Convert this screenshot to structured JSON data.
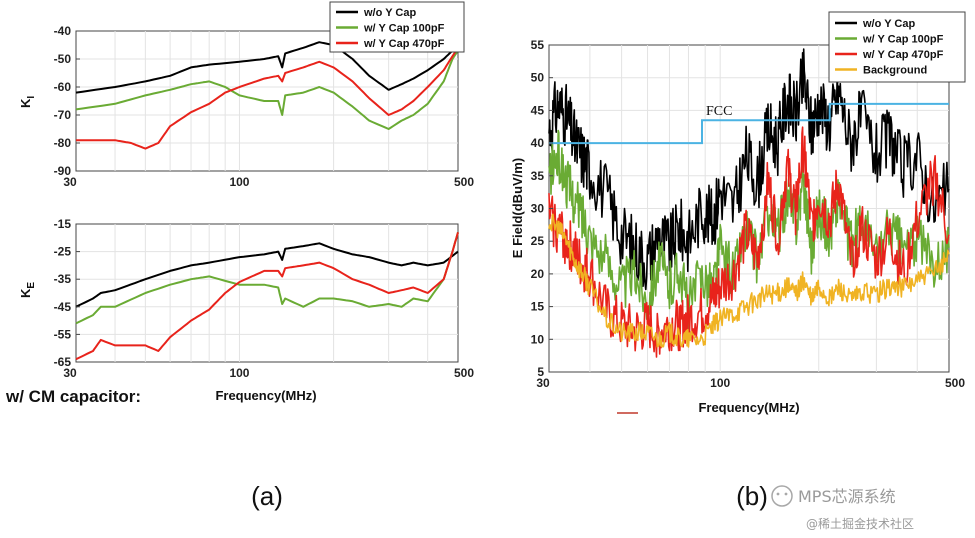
{
  "chart_data": [
    {
      "id": "kI",
      "type": "line",
      "ylabel": "K",
      "ylabel_sub": "I",
      "xlabel": "",
      "x_scale": "log",
      "xlim": [
        30,
        500
      ],
      "ylim": [
        -90,
        -40
      ],
      "x_ticks": [
        30,
        100,
        500
      ],
      "y_ticks": [
        -40,
        -50,
        -60,
        -70,
        -80,
        -90
      ],
      "legend": [
        "w/o Y Cap",
        "w/ Y Cap 100pF",
        "w/ Y Cap 470pF"
      ],
      "legend_position": "top-right",
      "series": [
        {
          "name": "w/o Y Cap",
          "color": "#000000",
          "x": [
            30,
            40,
            50,
            60,
            70,
            80,
            100,
            120,
            133,
            137,
            140,
            160,
            180,
            200,
            230,
            260,
            300,
            330,
            360,
            400,
            450,
            480,
            500
          ],
          "y": [
            -62,
            -60,
            -58,
            -56,
            -53,
            -52,
            -51,
            -50,
            -49,
            -53,
            -48,
            -46,
            -44,
            -45,
            -50,
            -56,
            -61,
            -59,
            -57,
            -54,
            -50,
            -47,
            -46
          ]
        },
        {
          "name": "w/ Y Cap 100pF",
          "color": "#6aab34",
          "x": [
            30,
            40,
            50,
            60,
            70,
            80,
            90,
            100,
            120,
            133,
            137,
            140,
            160,
            180,
            200,
            230,
            260,
            300,
            330,
            360,
            400,
            450,
            480,
            500
          ],
          "y": [
            -68,
            -66,
            -63,
            -61,
            -59,
            -58,
            -60,
            -63,
            -65,
            -65,
            -70,
            -63,
            -62,
            -60,
            -62,
            -67,
            -72,
            -75,
            -72,
            -70,
            -66,
            -58,
            -50,
            -47
          ]
        },
        {
          "name": "w/ Y Cap 470pF",
          "color": "#e8231b",
          "x": [
            30,
            40,
            45,
            50,
            55,
            60,
            70,
            80,
            90,
            100,
            120,
            133,
            137,
            140,
            160,
            180,
            200,
            230,
            260,
            300,
            330,
            360,
            400,
            450,
            480,
            500
          ],
          "y": [
            -79,
            -79,
            -80,
            -82,
            -80,
            -74,
            -69,
            -66,
            -62,
            -60,
            -57,
            -56,
            -58,
            -55,
            -53,
            -51,
            -53,
            -58,
            -64,
            -70,
            -68,
            -65,
            -60,
            -54,
            -49,
            -46
          ]
        }
      ]
    },
    {
      "id": "kE",
      "type": "line",
      "ylabel": "K",
      "ylabel_sub": "E",
      "xlabel": "Frequency(MHz)",
      "x_scale": "log",
      "xlim": [
        30,
        500
      ],
      "ylim": [
        -65,
        -15
      ],
      "x_ticks": [
        30,
        100,
        500
      ],
      "y_ticks": [
        -15,
        -25,
        -35,
        -45,
        -55,
        -65
      ],
      "series": [
        {
          "name": "w/o Y Cap",
          "color": "#000000",
          "x": [
            30,
            34,
            36,
            40,
            50,
            60,
            70,
            80,
            100,
            120,
            133,
            137,
            140,
            160,
            180,
            200,
            230,
            260,
            300,
            330,
            360,
            400,
            450,
            500
          ],
          "y": [
            -45,
            -42,
            -40,
            -39,
            -35,
            -32,
            -30,
            -29,
            -27,
            -26,
            -25,
            -28,
            -24,
            -23,
            -22,
            -24,
            -26,
            -27,
            -29,
            -30,
            -29,
            -30,
            -29,
            -25
          ]
        },
        {
          "name": "w/ Y Cap 100pF",
          "color": "#6aab34",
          "x": [
            30,
            34,
            36,
            40,
            50,
            60,
            70,
            80,
            100,
            120,
            133,
            137,
            140,
            160,
            180,
            200,
            230,
            260,
            300,
            330,
            360,
            400,
            450,
            480,
            500
          ],
          "y": [
            -51,
            -48,
            -45,
            -45,
            -40,
            -37,
            -35,
            -34,
            -37,
            -37,
            -38,
            -44,
            -42,
            -45,
            -42,
            -42,
            -43,
            -45,
            -44,
            -45,
            -42,
            -43,
            -35,
            -25,
            -18
          ]
        },
        {
          "name": "w/ Y Cap 470pF",
          "color": "#e8231b",
          "x": [
            30,
            34,
            36,
            40,
            50,
            55,
            60,
            70,
            80,
            90,
            100,
            120,
            133,
            137,
            140,
            160,
            180,
            200,
            230,
            260,
            300,
            330,
            360,
            400,
            450,
            480,
            500
          ],
          "y": [
            -64,
            -61,
            -57,
            -59,
            -59,
            -61,
            -56,
            -50,
            -46,
            -40,
            -36,
            -32,
            -32,
            -34,
            -31,
            -30,
            -29,
            -31,
            -35,
            -37,
            -40,
            -39,
            -38,
            -40,
            -35,
            -25,
            -18
          ]
        }
      ]
    },
    {
      "id": "efield",
      "type": "line",
      "ylabel": "E Field(dBuV/m)",
      "xlabel": "Frequency(MHz)",
      "x_scale": "log",
      "xlim": [
        30,
        500
      ],
      "ylim": [
        5,
        55
      ],
      "x_ticks": [
        30,
        100,
        500
      ],
      "y_ticks": [
        5,
        10,
        15,
        20,
        25,
        30,
        35,
        40,
        45,
        50,
        55
      ],
      "legend": [
        "w/o Y Cap",
        "w/ Y Cap 100pF",
        "w/ Y Cap 470pF",
        "Background"
      ],
      "legend_position": "top-right",
      "annotation": "FCC",
      "limit_line": {
        "name": "FCC",
        "color": "#4bb3e3",
        "x": [
          30,
          88,
          88,
          216,
          216,
          500
        ],
        "y": [
          40,
          40,
          43.5,
          43.5,
          46,
          46
        ]
      },
      "series": [
        {
          "name": "w/o Y Cap",
          "color": "#000000",
          "x": [
            30,
            32,
            34,
            36,
            38,
            40,
            45,
            50,
            55,
            60,
            65,
            70,
            75,
            80,
            88,
            95,
            100,
            110,
            120,
            130,
            140,
            150,
            160,
            170,
            180,
            190,
            200,
            216,
            230,
            250,
            270,
            300,
            330,
            360,
            400,
            450,
            500
          ],
          "y": [
            42,
            46,
            44,
            40,
            38,
            36,
            32,
            26,
            24,
            22,
            26,
            24,
            27,
            25,
            30,
            28,
            33,
            30,
            38,
            34,
            42,
            40,
            47,
            44,
            50,
            42,
            46,
            43,
            48,
            40,
            44,
            38,
            41,
            36,
            38,
            30,
            33
          ]
        },
        {
          "name": "w/ Y Cap 100pF",
          "color": "#6aab34",
          "x": [
            30,
            32,
            34,
            36,
            38,
            40,
            45,
            50,
            55,
            60,
            65,
            70,
            75,
            80,
            88,
            95,
            100,
            110,
            120,
            130,
            140,
            150,
            160,
            170,
            180,
            190,
            200,
            216,
            230,
            250,
            270,
            300,
            330,
            360,
            400,
            450,
            500
          ],
          "y": [
            35,
            38,
            34,
            31,
            29,
            26,
            22,
            18,
            20,
            16,
            22,
            18,
            21,
            15,
            20,
            18,
            24,
            20,
            27,
            22,
            30,
            26,
            32,
            28,
            34,
            24,
            30,
            26,
            32,
            24,
            28,
            23,
            27,
            24,
            25,
            22,
            24
          ]
        },
        {
          "name": "w/ Y Cap 470pF",
          "color": "#e8231b",
          "x": [
            30,
            32,
            34,
            36,
            38,
            40,
            45,
            50,
            55,
            60,
            65,
            70,
            75,
            80,
            88,
            95,
            100,
            110,
            120,
            130,
            140,
            150,
            160,
            170,
            180,
            190,
            200,
            216,
            230,
            250,
            270,
            300,
            330,
            360,
            400,
            450,
            500
          ],
          "y": [
            29,
            27,
            25,
            23,
            21,
            20,
            14,
            12,
            11,
            12,
            11,
            12,
            12,
            13,
            14,
            16,
            18,
            20,
            26,
            22,
            34,
            26,
            36,
            30,
            40,
            27,
            32,
            28,
            34,
            22,
            27,
            22,
            26,
            20,
            28,
            35,
            26
          ]
        },
        {
          "name": "Background",
          "color": "#f0b323",
          "x": [
            30,
            32,
            34,
            36,
            38,
            40,
            45,
            50,
            55,
            60,
            65,
            70,
            75,
            80,
            88,
            95,
            100,
            110,
            120,
            130,
            140,
            150,
            160,
            170,
            180,
            190,
            200,
            216,
            230,
            250,
            270,
            300,
            330,
            360,
            400,
            450,
            500
          ],
          "y": [
            28,
            27,
            25,
            22,
            20,
            18,
            13,
            11,
            11,
            11,
            10,
            11,
            10,
            10,
            10,
            12,
            13,
            14,
            15,
            16,
            17,
            17,
            18,
            17,
            19,
            16,
            18,
            16,
            18,
            16,
            17,
            17,
            18,
            18,
            19,
            20,
            23
          ]
        }
      ]
    }
  ],
  "captions": {
    "a": "(a)",
    "b": "(b)"
  },
  "note": "w/ CM capacitor:",
  "watermark": {
    "line1": "MPS芯源系统",
    "line2": "@稀土掘金技术社区"
  }
}
